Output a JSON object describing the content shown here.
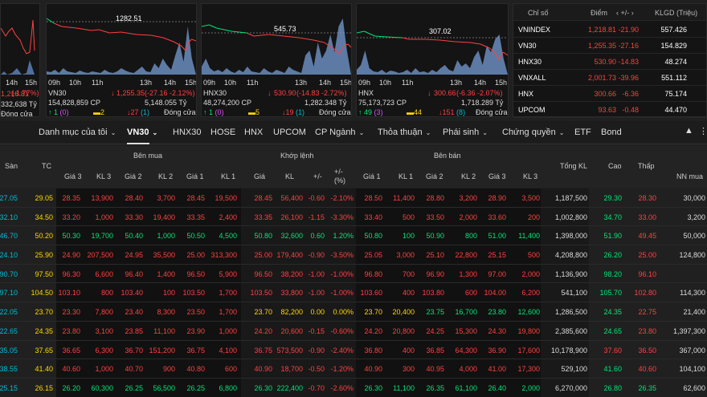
{
  "panels": [
    {
      "name": "vnindex",
      "mid_label": "",
      "times": [
        "14h",
        "15h"
      ],
      "value": "1,218.81",
      "change": "-21.90",
      "pct": "-1.77%",
      "vol": "332,638 Tỷ",
      "ups": "1",
      "refs": "0",
      "status": "Đóng cửa",
      "downs": "",
      "floors": "",
      "ceils": ""
    },
    {
      "name": "vn30",
      "mid_label": "1282.51",
      "times": [
        "09h",
        "10h",
        "11h",
        "13h",
        "14h",
        "15h"
      ],
      "title": "VN30",
      "value": "1,255.35",
      "change": "-27.16",
      "pct": "-2.12%",
      "vol": "154,828,859 CP",
      "value2": "5,148.055 Tỷ",
      "ups": "1",
      "refs": "2",
      "ceils": "0",
      "downs": "27",
      "floors": "1",
      "status": "Đóng cửa"
    },
    {
      "name": "hnx30",
      "mid_label": "545.73",
      "times": [
        "09h",
        "10h",
        "11h",
        "13h",
        "14h",
        "15h"
      ],
      "title": "HNX30",
      "value": "530.90",
      "change": "-14.83",
      "pct": "-2.72%",
      "vol": "48,274,200 CP",
      "value2": "1,282.348 Tỷ",
      "ups": "1",
      "refs": "5",
      "ceils": "0",
      "downs": "19",
      "floors": "1",
      "status": "Đóng cửa"
    },
    {
      "name": "hnx",
      "mid_label": "307.02",
      "times": [
        "09h",
        "10h",
        "11h",
        "13h",
        "14h",
        "15h"
      ],
      "title": "HNX",
      "value": "300.66",
      "change": "-6.36",
      "pct": "-2.07%",
      "vol": "75,173,723 CP",
      "value2": "1,718.289 Tỷ",
      "ups": "49",
      "refs": "44",
      "ceils": "3",
      "downs": "151",
      "floors": "8",
      "status": "Đóng cửa"
    }
  ],
  "index_table": {
    "headers": {
      "name": "Chỉ số",
      "point": "Điểm",
      "change": "+/-",
      "vol": "KLGD (Triệu)"
    },
    "rows": [
      {
        "name": "VNINDEX",
        "point": "1,218.81",
        "change": "-21.90",
        "vol": "557.426"
      },
      {
        "name": "VN30",
        "point": "1,255.35",
        "change": "-27.16",
        "vol": "154.829"
      },
      {
        "name": "HNX30",
        "point": "530.90",
        "change": "-14.83",
        "vol": "48.274"
      },
      {
        "name": "VNXALL",
        "point": "2,001.73",
        "change": "-39.96",
        "vol": "551.112"
      },
      {
        "name": "HNX",
        "point": "300.66",
        "change": "-6.36",
        "vol": "75.174"
      },
      {
        "name": "UPCOM",
        "point": "93.63",
        "change": "-0.48",
        "vol": "44.470"
      }
    ]
  },
  "tabs": [
    "Danh mục của tôi",
    "VN30",
    "HNX30",
    "HOSE",
    "HNX",
    "UPCOM",
    "CP Ngành",
    "Thỏa thuận",
    "Phái sinh",
    "Chứng quyền",
    "ETF",
    "Bond"
  ],
  "table_headers": {
    "san": "Sàn",
    "tc": "TC",
    "ben_mua": "Bên mua",
    "khop_lenh": "Khớp lệnh",
    "ben_ban": "Bên bán",
    "gia3": "Giá 3",
    "kl3": "KL 3",
    "gia2": "Giá 2",
    "kl2": "KL 2",
    "gia1": "Giá 1",
    "kl1": "KL 1",
    "gia": "Giá",
    "kl": "KL",
    "pm": "+/-",
    "pmpct": "+/-",
    "pct": "(%)",
    "tong_kl": "Tổng KL",
    "cao": "Cao",
    "thap": "Thấp",
    "nn_mua": "NN mua"
  },
  "rows": [
    [
      "27.05",
      "29.05",
      "28.35",
      "13,900",
      "28.40",
      "3,700",
      "28.45",
      "19,500",
      "28.45",
      "56,400",
      "-0.60",
      "-2.10%",
      "28.50",
      "11,400",
      "28.80",
      "3,200",
      "28.90",
      "3,500",
      "1,187,500",
      "29.30",
      "28.30",
      "30,000"
    ],
    [
      "32.10",
      "34.50",
      "33.20",
      "1,000",
      "33.30",
      "19,400",
      "33.35",
      "2,400",
      "33.35",
      "26,100",
      "-1.15",
      "-3.30%",
      "33.40",
      "500",
      "33.50",
      "2,000",
      "33.60",
      "200",
      "1,002,800",
      "34.70",
      "33.00",
      "3,200"
    ],
    [
      "46.70",
      "50.20",
      "50.30",
      "19,700",
      "50.40",
      "1,000",
      "50.50",
      "4,500",
      "50.80",
      "32,600",
      "0.60",
      "1.20%",
      "50.80",
      "100",
      "50.90",
      "800",
      "51.00",
      "11,400",
      "1,398,000",
      "51.90",
      "49.45",
      "50,000"
    ],
    [
      "24.10",
      "25.90",
      "24.90",
      "207,500",
      "24.95",
      "35,500",
      "25.00",
      "313,300",
      "25.00",
      "179,400",
      "-0.90",
      "-3.50%",
      "25.05",
      "3,000",
      "25.10",
      "22,800",
      "25.15",
      "500",
      "4,208,800",
      "26.20",
      "25.00",
      "124,800"
    ],
    [
      "90.70",
      "97.50",
      "96.30",
      "6,600",
      "96.40",
      "1,400",
      "96.50",
      "5,900",
      "96.50",
      "38,200",
      "-1.00",
      "-1.00%",
      "96.80",
      "700",
      "96.90",
      "1,300",
      "97.00",
      "2,000",
      "1,136,900",
      "98.20",
      "96.10",
      ""
    ],
    [
      "97.10",
      "104.50",
      "103.10",
      "800",
      "103.40",
      "100",
      "103.50",
      "1,700",
      "103.50",
      "33,800",
      "-1.00",
      "-1.00%",
      "103.60",
      "400",
      "103.80",
      "600",
      "104.00",
      "6,200",
      "541,100",
      "105.70",
      "102.80",
      "114,300"
    ],
    [
      "22.05",
      "23.70",
      "23.30",
      "7,800",
      "23.40",
      "8,300",
      "23.50",
      "1,700",
      "23.70",
      "82,200",
      "0.00",
      "0.00%",
      "23.70",
      "20,400",
      "23.75",
      "16,700",
      "23.80",
      "12,600",
      "1,286,500",
      "24.35",
      "22.75",
      "21,400"
    ],
    [
      "22.65",
      "24.35",
      "23.80",
      "3,100",
      "23.85",
      "11,100",
      "23.90",
      "1,000",
      "24.20",
      "20,600",
      "-0.15",
      "-0.60%",
      "24.20",
      "20,800",
      "24.25",
      "15,300",
      "24.30",
      "19,800",
      "2,385,600",
      "24.65",
      "23.80",
      "1,397,300"
    ],
    [
      "35.05",
      "37.65",
      "36.65",
      "6,300",
      "36.70",
      "151,200",
      "36.75",
      "4,100",
      "36.75",
      "573,500",
      "-0.90",
      "-2.40%",
      "36.80",
      "400",
      "36.85",
      "64,300",
      "36.90",
      "17,600",
      "10,178,900",
      "37.60",
      "36.50",
      "367,000"
    ],
    [
      "38.55",
      "41.40",
      "40.60",
      "1,000",
      "40.70",
      "900",
      "40.80",
      "600",
      "40.90",
      "18,700",
      "-0.50",
      "-1.20%",
      "40.90",
      "300",
      "40.95",
      "4,000",
      "41.00",
      "17,300",
      "529,100",
      "41.60",
      "40.60",
      "104,100"
    ],
    [
      "25.15",
      "26.15",
      "26.20",
      "60,300",
      "26.25",
      "56,500",
      "26.25",
      "6,800",
      "26.30",
      "222,400",
      "-0.70",
      "-2.60%",
      "26.30",
      "11,100",
      "26.35",
      "61,100",
      "26.40",
      "2,000",
      "6,270,000",
      "26.80",
      "26.35",
      "62,600"
    ]
  ],
  "colors": {
    "up": "#00e676",
    "down": "#ff4040",
    "ref": "#ffd600",
    "floor": "#00bcd4",
    "ceil": "#e04cff"
  }
}
